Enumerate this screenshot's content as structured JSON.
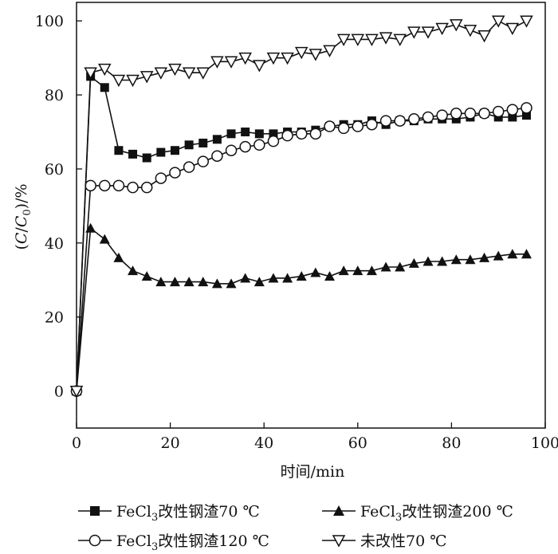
{
  "chart_data": {
    "type": "line",
    "xlabel": "时间/min",
    "ylabel": {
      "open": "(",
      "c": "C",
      "slash": "/",
      "c0": "C",
      "sub0": "0",
      "close": ")/%"
    },
    "xlim": [
      0,
      100
    ],
    "ylim": [
      -10,
      105
    ],
    "xticks": [
      "0",
      "20",
      "40",
      "60",
      "80",
      "100"
    ],
    "yticks": [
      "0",
      "20",
      "40",
      "60",
      "80",
      "100"
    ],
    "grid": false,
    "legend_position": "bottom",
    "series": [
      {
        "name_parts": {
          "a": "FeCl",
          "sub": "3",
          "b": "改性钢渣70 ℃"
        },
        "marker": "square-filled",
        "x": [
          0,
          3,
          6,
          9,
          12,
          15,
          18,
          21,
          24,
          27,
          30,
          33,
          36,
          39,
          42,
          45,
          48,
          51,
          54,
          57,
          60,
          63,
          66,
          69,
          72,
          75,
          78,
          81,
          84,
          87,
          90,
          93,
          96
        ],
        "y": [
          0,
          85,
          82,
          65,
          64,
          63,
          64.5,
          65,
          66.5,
          67,
          68,
          69.5,
          70,
          69.5,
          69.5,
          70,
          70,
          70.5,
          71.5,
          72,
          72,
          73,
          72,
          73,
          73,
          73.5,
          73.5,
          73.5,
          74,
          75,
          74,
          74,
          74.5
        ]
      },
      {
        "name_parts": {
          "a": "FeCl",
          "sub": "3",
          "b": "改性钢渣200 ℃"
        },
        "marker": "triangle-up-filled",
        "x": [
          0,
          3,
          6,
          9,
          12,
          15,
          18,
          21,
          24,
          27,
          30,
          33,
          36,
          39,
          42,
          45,
          48,
          51,
          54,
          57,
          60,
          63,
          66,
          69,
          72,
          75,
          78,
          81,
          84,
          87,
          90,
          93,
          96
        ],
        "y": [
          0,
          44,
          41,
          36,
          32.5,
          31,
          29.5,
          29.5,
          29.5,
          29.5,
          29,
          29,
          30.5,
          29.5,
          30.5,
          30.5,
          31,
          32,
          31,
          32.5,
          32.5,
          32.5,
          33.5,
          33.5,
          34.5,
          35,
          35,
          35.5,
          35.5,
          36,
          36.5,
          37,
          37
        ]
      },
      {
        "name_parts": {
          "a": "FeCl",
          "sub": "3",
          "b": "改性钢渣120 ℃"
        },
        "marker": "circle-open",
        "x": [
          0,
          3,
          6,
          9,
          12,
          15,
          18,
          21,
          24,
          27,
          30,
          33,
          36,
          39,
          42,
          45,
          48,
          51,
          54,
          57,
          60,
          63,
          66,
          69,
          72,
          75,
          78,
          81,
          84,
          87,
          90,
          93,
          96
        ],
        "y": [
          0,
          55.5,
          55.5,
          55.5,
          55,
          55,
          57.5,
          59,
          60.5,
          62,
          63.5,
          65,
          66,
          66.5,
          67.5,
          69,
          69.5,
          69.5,
          71.5,
          71,
          71.5,
          72,
          73,
          73,
          73.5,
          74,
          74.5,
          75,
          75,
          75,
          75.5,
          76,
          76.5
        ]
      },
      {
        "name_parts": {
          "a": "",
          "sub": "",
          "b": "未改性70 ℃"
        },
        "marker": "triangle-down-open",
        "x": [
          0,
          3,
          6,
          9,
          12,
          15,
          18,
          21,
          24,
          27,
          30,
          33,
          36,
          39,
          42,
          45,
          48,
          51,
          54,
          57,
          60,
          63,
          66,
          69,
          72,
          75,
          78,
          81,
          84,
          87,
          90,
          93,
          96
        ],
        "y": [
          0,
          86,
          87,
          84,
          84,
          85,
          86,
          87,
          86,
          86,
          89,
          89,
          90,
          88,
          90,
          90,
          91.5,
          91,
          92,
          95,
          95,
          95,
          95.5,
          95,
          97,
          97,
          98,
          99,
          97.5,
          96,
          100,
          98,
          100
        ]
      }
    ]
  }
}
